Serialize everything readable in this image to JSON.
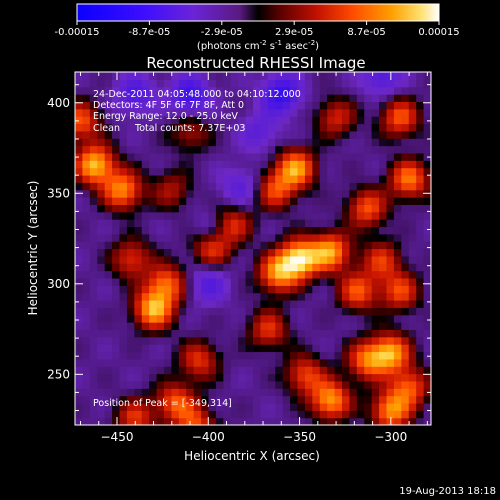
{
  "colorbar": {
    "tick_labels": [
      "-0.00015",
      "-8.7e-05",
      "-2.9e-05",
      "2.9e-05",
      "8.7e-05",
      "0.00015"
    ],
    "unit_text": "(photons cm",
    "unit_exp1": "-2",
    "unit_mid": " s",
    "unit_exp2": "-1",
    "unit_mid2": " asec",
    "unit_exp3": "-2",
    "unit_end": ")",
    "range": [
      -0.00015,
      0.00015
    ]
  },
  "image_title": "Reconstructed RHESSI Image",
  "annotations": {
    "time_range": "24-Dec-2011 04:05:48.000 to 04:10:12.000",
    "detectors": "Detectors: 4F 5F 6F 7F 8F, Att 0",
    "energy": "Energy Range: 12.0 - 25.0 keV",
    "clean": "Clean     Total counts: 7.37E+03",
    "peak": "Position of Peak = [-349,314]"
  },
  "footer_date": "19-Aug-2013 18:18",
  "chart_data": {
    "type": "heatmap",
    "title": "Reconstructed RHESSI Image",
    "xlabel": "Heliocentric X (arcsec)",
    "ylabel": "Heliocentric Y (arcsec)",
    "xlim": [
      -473,
      -278
    ],
    "ylim": [
      222,
      417
    ],
    "xticks": [
      -450,
      -400,
      -350,
      -300
    ],
    "yticks": [
      250,
      300,
      350,
      400
    ],
    "xtick_labels": [
      "−450",
      "−400",
      "−350",
      "−300"
    ],
    "ytick_labels": [
      "250",
      "300",
      "350",
      "400"
    ],
    "peak": [
      -349,
      314
    ],
    "sources": [
      {
        "x": -350,
        "y": 314,
        "v": 1.0
      },
      {
        "x": -362,
        "y": 306,
        "v": 0.75
      },
      {
        "x": -333,
        "y": 318,
        "v": 0.8
      },
      {
        "x": -318,
        "y": 296,
        "v": 0.6
      },
      {
        "x": -305,
        "y": 313,
        "v": 0.5
      },
      {
        "x": -295,
        "y": 296,
        "v": 0.55
      },
      {
        "x": -300,
        "y": 262,
        "v": 0.8
      },
      {
        "x": -313,
        "y": 258,
        "v": 0.65
      },
      {
        "x": -290,
        "y": 243,
        "v": 0.6
      },
      {
        "x": -300,
        "y": 230,
        "v": 0.75
      },
      {
        "x": -333,
        "y": 236,
        "v": 0.8
      },
      {
        "x": -347,
        "y": 250,
        "v": 0.55
      },
      {
        "x": -367,
        "y": 275,
        "v": 0.5
      },
      {
        "x": -352,
        "y": 364,
        "v": 0.8
      },
      {
        "x": -363,
        "y": 352,
        "v": 0.55
      },
      {
        "x": -313,
        "y": 342,
        "v": 0.6
      },
      {
        "x": -290,
        "y": 358,
        "v": 0.7
      },
      {
        "x": -462,
        "y": 366,
        "v": 0.9
      },
      {
        "x": -447,
        "y": 352,
        "v": 0.75
      },
      {
        "x": -470,
        "y": 390,
        "v": 0.6
      },
      {
        "x": -430,
        "y": 286,
        "v": 0.85
      },
      {
        "x": -423,
        "y": 300,
        "v": 0.65
      },
      {
        "x": -442,
        "y": 314,
        "v": 0.5
      },
      {
        "x": -418,
        "y": 235,
        "v": 0.6
      },
      {
        "x": -407,
        "y": 222,
        "v": 0.55
      },
      {
        "x": -440,
        "y": 226,
        "v": 0.5
      },
      {
        "x": -398,
        "y": 320,
        "v": 0.55
      },
      {
        "x": -387,
        "y": 333,
        "v": 0.5
      },
      {
        "x": -405,
        "y": 258,
        "v": 0.5
      },
      {
        "x": -410,
        "y": 384,
        "v": 0.35
      },
      {
        "x": -330,
        "y": 392,
        "v": 0.45
      },
      {
        "x": -295,
        "y": 392,
        "v": 0.6
      },
      {
        "x": -420,
        "y": 352,
        "v": 0.35
      }
    ],
    "negative_regions": [
      {
        "x": -360,
        "y": 405,
        "v": -0.6
      },
      {
        "x": -410,
        "y": 404,
        "v": -0.55
      },
      {
        "x": -440,
        "y": 405,
        "v": -0.4
      },
      {
        "x": -305,
        "y": 415,
        "v": -0.4
      },
      {
        "x": -400,
        "y": 300,
        "v": -0.35
      },
      {
        "x": -383,
        "y": 354,
        "v": -0.3
      },
      {
        "x": -372,
        "y": 384,
        "v": -0.3
      },
      {
        "x": -398,
        "y": 330,
        "v": -0.25
      }
    ]
  }
}
